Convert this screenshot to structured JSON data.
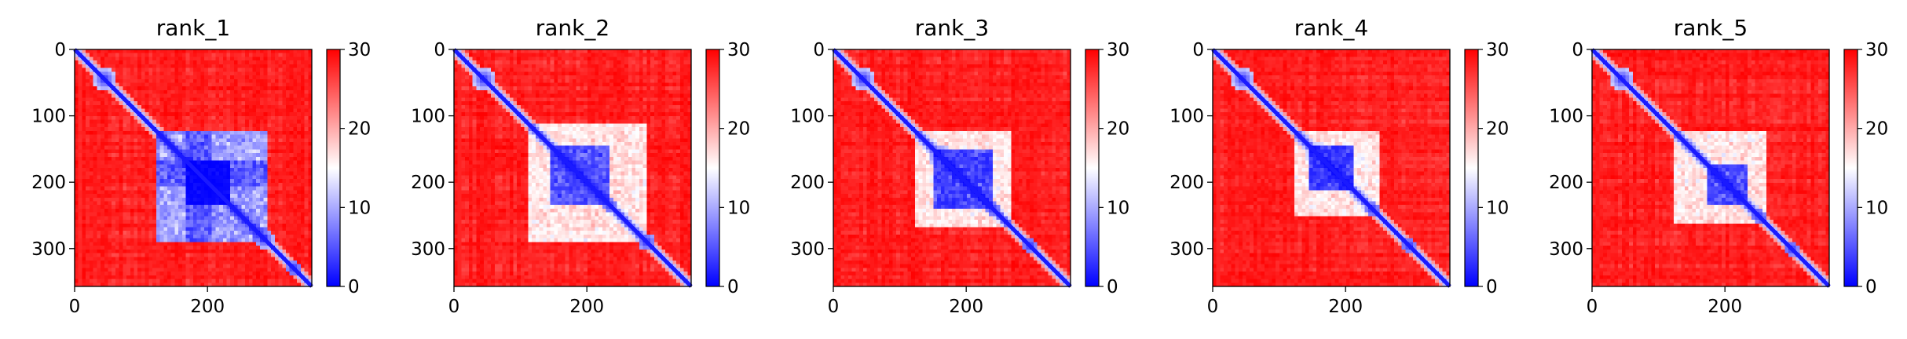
{
  "chart_data": [
    {
      "type": "heatmap",
      "title": "rank_1",
      "xlabel": "",
      "ylabel": "",
      "xlim": [
        0,
        357
      ],
      "ylim": [
        357,
        0
      ],
      "xticks": [
        0,
        200
      ],
      "yticks": [
        0,
        100,
        200,
        300
      ],
      "colorbar": {
        "range": [
          0,
          30
        ],
        "ticks": [
          0,
          10,
          20,
          30
        ],
        "colors": [
          "#0000ff",
          "#ffffff",
          "#ff0000"
        ]
      },
      "diagonal_blobs": [
        [
          45,
          8
        ],
        [
          210,
          10
        ],
        [
          285,
          7
        ],
        [
          330,
          5
        ]
      ],
      "low_blocks": [
        [
          120,
          290,
          120,
          290,
          0.55
        ],
        [
          165,
          235,
          165,
          235,
          0.95
        ],
        [
          120,
          290,
          170,
          205,
          0.6
        ]
      ]
    },
    {
      "type": "heatmap",
      "title": "rank_2",
      "xlabel": "",
      "ylabel": "",
      "xlim": [
        0,
        357
      ],
      "ylim": [
        357,
        0
      ],
      "xticks": [
        0,
        200
      ],
      "yticks": [
        0,
        100,
        200,
        300
      ],
      "colorbar": {
        "range": [
          0,
          30
        ],
        "ticks": [
          0,
          10,
          20,
          30
        ],
        "colors": [
          "#0000ff",
          "#ffffff",
          "#ff0000"
        ]
      },
      "diagonal_blobs": [
        [
          45,
          8
        ],
        [
          160,
          6
        ],
        [
          200,
          6
        ],
        [
          235,
          5
        ],
        [
          290,
          6
        ]
      ],
      "low_blocks": [
        [
          110,
          290,
          110,
          290,
          0.3
        ],
        [
          145,
          235,
          145,
          235,
          0.6
        ]
      ]
    },
    {
      "type": "heatmap",
      "title": "rank_3",
      "xlabel": "",
      "ylabel": "",
      "xlim": [
        0,
        357
      ],
      "ylim": [
        357,
        0
      ],
      "xticks": [
        0,
        200
      ],
      "yticks": [
        0,
        100,
        200,
        300
      ],
      "colorbar": {
        "range": [
          0,
          30
        ],
        "ticks": [
          0,
          10,
          20,
          30
        ],
        "colors": [
          "#0000ff",
          "#ffffff",
          "#ff0000"
        ]
      },
      "diagonal_blobs": [
        [
          45,
          8
        ],
        [
          160,
          8
        ],
        [
          205,
          6
        ],
        [
          240,
          5
        ],
        [
          295,
          5
        ]
      ],
      "low_blocks": [
        [
          120,
          270,
          120,
          270,
          0.3
        ],
        [
          150,
          240,
          150,
          240,
          0.65
        ]
      ]
    },
    {
      "type": "heatmap",
      "title": "rank_4",
      "xlabel": "",
      "ylabel": "",
      "xlim": [
        0,
        357
      ],
      "ylim": [
        357,
        0
      ],
      "xticks": [
        0,
        200
      ],
      "yticks": [
        0,
        100,
        200,
        300
      ],
      "colorbar": {
        "range": [
          0,
          30
        ],
        "ticks": [
          0,
          10,
          20,
          30
        ],
        "colors": [
          "#0000ff",
          "#ffffff",
          "#ff0000"
        ]
      },
      "diagonal_blobs": [
        [
          45,
          8
        ],
        [
          160,
          9
        ],
        [
          195,
          6
        ],
        [
          240,
          5
        ],
        [
          295,
          5
        ]
      ],
      "low_blocks": [
        [
          120,
          250,
          120,
          250,
          0.3
        ],
        [
          145,
          210,
          145,
          210,
          0.7
        ]
      ]
    },
    {
      "type": "heatmap",
      "title": "rank_5",
      "xlabel": "",
      "ylabel": "",
      "xlim": [
        0,
        357
      ],
      "ylim": [
        357,
        0
      ],
      "xticks": [
        0,
        200
      ],
      "yticks": [
        0,
        100,
        200,
        300
      ],
      "colorbar": {
        "range": [
          0,
          30
        ],
        "ticks": [
          0,
          10,
          20,
          30
        ],
        "colors": [
          "#0000ff",
          "#ffffff",
          "#ff0000"
        ]
      },
      "diagonal_blobs": [
        [
          45,
          8
        ],
        [
          200,
          7
        ],
        [
          250,
          5
        ],
        [
          300,
          5
        ]
      ],
      "low_blocks": [
        [
          120,
          260,
          120,
          260,
          0.3
        ],
        [
          175,
          235,
          175,
          235,
          0.6
        ]
      ]
    }
  ]
}
